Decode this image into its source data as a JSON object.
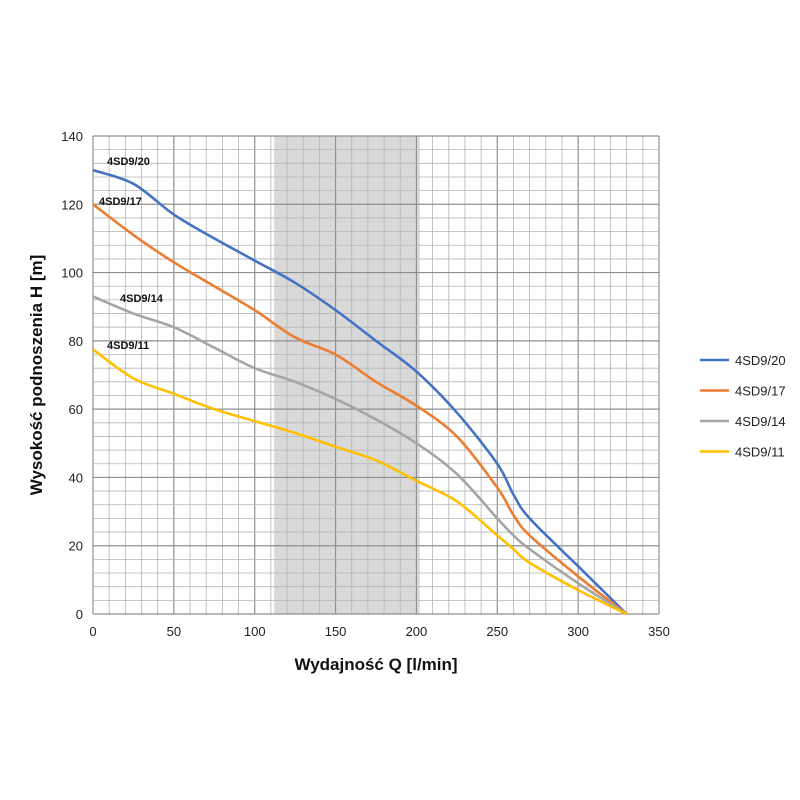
{
  "chart_data": {
    "type": "line",
    "title": "",
    "xlabel": "Wydajność Q [l/min]",
    "ylabel": "Wysokość podnoszenia H [m]",
    "xlim": [
      0,
      350
    ],
    "ylim": [
      0,
      140
    ],
    "xticks": [
      0,
      50,
      100,
      150,
      200,
      250,
      300,
      350
    ],
    "yticks": [
      0,
      20,
      40,
      60,
      80,
      100,
      120,
      140
    ],
    "grid": true,
    "legend_position": "right",
    "shaded_range": [
      112,
      202
    ],
    "x": [
      0,
      25,
      50,
      75,
      100,
      125,
      150,
      175,
      200,
      225,
      250,
      260,
      270,
      300,
      330
    ],
    "series": [
      {
        "name": "4SD9/20",
        "color": "#4472c4",
        "values": [
          130,
          126,
          117,
          110,
          103.5,
          97,
          89,
          80,
          71,
          59,
          44,
          35,
          28,
          14,
          0
        ]
      },
      {
        "name": "4SD9/17",
        "color": "#ed7d31",
        "values": [
          120,
          111,
          103,
          96,
          89,
          81,
          76,
          68,
          61,
          52,
          37,
          29,
          23,
          11,
          0
        ]
      },
      {
        "name": "4SD9/14",
        "color": "#a5a5a5",
        "values": [
          93,
          88,
          84,
          78,
          72,
          68,
          63,
          57,
          50,
          41,
          28,
          23,
          19,
          9,
          0
        ]
      },
      {
        "name": "4SD9/11",
        "color": "#ffc000",
        "values": [
          77.5,
          69,
          64.5,
          60,
          56.5,
          53,
          49,
          45,
          39,
          33,
          23,
          19,
          15,
          7,
          0
        ]
      }
    ],
    "annotations": [
      {
        "text": "4SD9/20",
        "series": "4SD9/20"
      },
      {
        "text": "4SD9/17",
        "series": "4SD9/17"
      },
      {
        "text": "4SD9/14",
        "series": "4SD9/14"
      },
      {
        "text": "4SD9/11",
        "series": "4SD9/11"
      }
    ]
  }
}
